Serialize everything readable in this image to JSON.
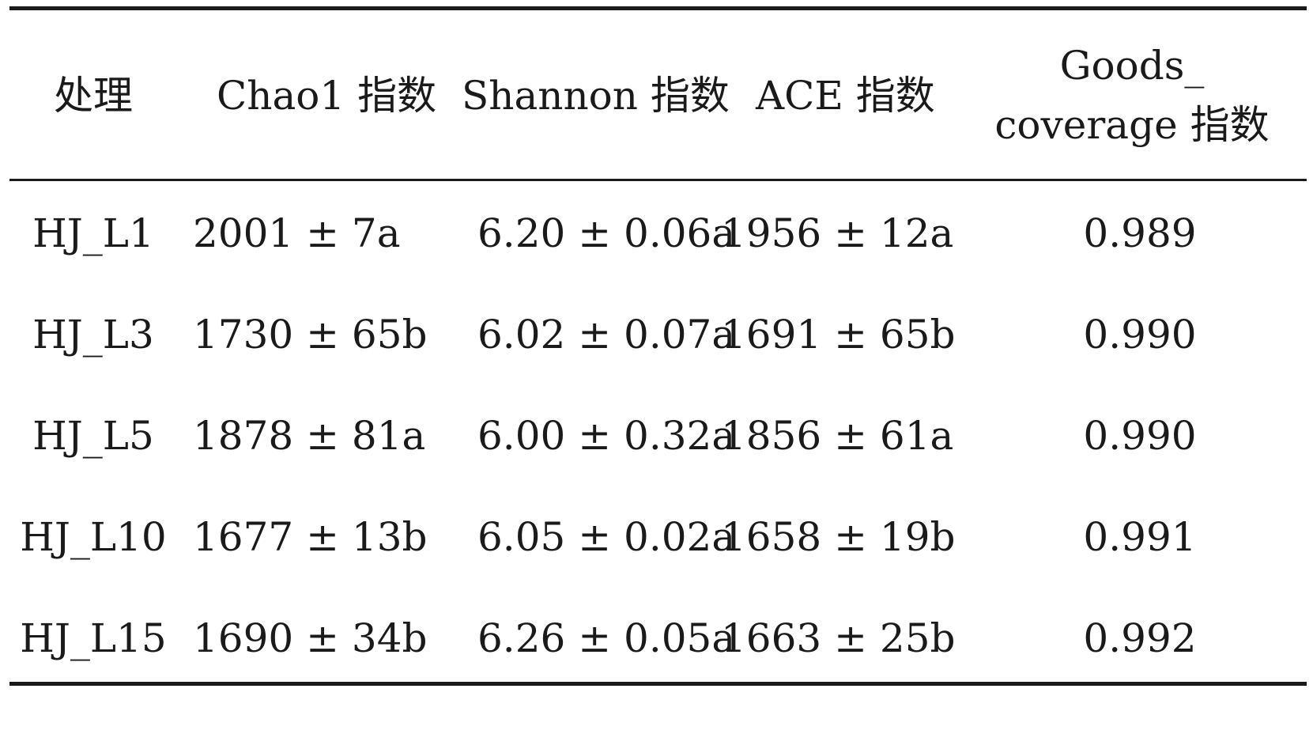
{
  "table": {
    "headers": {
      "treatment": "处理",
      "chao1": "Chao1 指数",
      "shannon": "Shannon 指数",
      "ace": "ACE 指数",
      "goods_line1": "Goods_",
      "goods_line2": "coverage 指数"
    },
    "rows": [
      {
        "treatment": "HJ_L1",
        "chao1": "2001 ± 7a",
        "shannon": "6.20 ± 0.06a",
        "ace": "1956 ± 12a",
        "goods": "0.989"
      },
      {
        "treatment": "HJ_L3",
        "chao1": "1730 ± 65b",
        "shannon": "6.02 ± 0.07a",
        "ace": "1691 ± 65b",
        "goods": "0.990"
      },
      {
        "treatment": "HJ_L5",
        "chao1": "1878 ± 81a",
        "shannon": "6.00 ± 0.32a",
        "ace": "1856 ± 61a",
        "goods": "0.990"
      },
      {
        "treatment": "HJ_L10",
        "chao1": "1677 ± 13b",
        "shannon": "6.05 ± 0.02a",
        "ace": "1658 ± 19b",
        "goods": "0.991"
      },
      {
        "treatment": "HJ_L15",
        "chao1": "1690 ± 34b",
        "shannon": "6.26 ± 0.05a",
        "ace": "1663 ± 25b",
        "goods": "0.992"
      }
    ]
  }
}
